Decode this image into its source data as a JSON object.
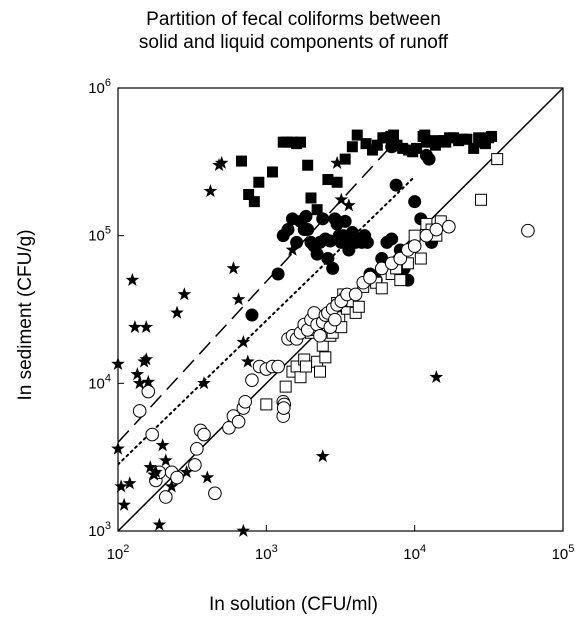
{
  "chart_data": {
    "type": "scatter",
    "title": [
      "Partition of fecal coliforms between",
      "solid and liquid components of runoff"
    ],
    "xlabel": "In solution (CFU/ml)",
    "ylabel": "In sediment (CFU/g)",
    "x_scale": "log",
    "y_scale": "log",
    "xlim": [
      100,
      100000
    ],
    "ylim": [
      1000,
      1000000
    ],
    "x_ticks": [
      100,
      1000,
      10000,
      100000
    ],
    "y_ticks": [
      1000,
      10000,
      100000,
      1000000
    ],
    "tick_labels": {
      "x": [
        {
          "base": "10",
          "exp": "2"
        },
        {
          "base": "10",
          "exp": "3"
        },
        {
          "base": "10",
          "exp": "4"
        },
        {
          "base": "10",
          "exp": "5"
        }
      ],
      "y": [
        {
          "base": "10",
          "exp": "3"
        },
        {
          "base": "10",
          "exp": "4"
        },
        {
          "base": "10",
          "exp": "5"
        },
        {
          "base": "10",
          "exp": "6"
        }
      ]
    },
    "grid": false,
    "legend": false,
    "lines": [
      {
        "style": "solid",
        "points": [
          [
            100,
            1000
          ],
          [
            100000,
            1000000
          ]
        ]
      },
      {
        "style": "dotted",
        "points": [
          [
            100,
            2820
          ],
          [
            10000,
            251000
          ]
        ]
      },
      {
        "style": "dashed",
        "points": [
          [
            100,
            3980
          ],
          [
            7000,
            408000
          ]
        ]
      }
    ],
    "series": [
      {
        "marker": "filled-square",
        "points": [
          [
            680,
            320000
          ],
          [
            760,
            190000
          ],
          [
            830,
            170000
          ],
          [
            890,
            230000
          ],
          [
            1100,
            270000
          ],
          [
            1300,
            430000
          ],
          [
            1380,
            430000
          ],
          [
            1500,
            430000
          ],
          [
            1600,
            420000
          ],
          [
            1700,
            430000
          ],
          [
            1900,
            300000
          ],
          [
            2000,
            180000
          ],
          [
            2200,
            150000
          ],
          [
            2600,
            240000
          ],
          [
            3000,
            230000
          ],
          [
            3400,
            330000
          ],
          [
            3800,
            400000
          ],
          [
            4100,
            480000
          ],
          [
            4700,
            420000
          ],
          [
            5200,
            380000
          ],
          [
            5600,
            410000
          ],
          [
            6100,
            460000
          ],
          [
            6500,
            460000
          ],
          [
            6900,
            470000
          ],
          [
            7200,
            480000
          ],
          [
            7600,
            410000
          ],
          [
            8300,
            390000
          ],
          [
            9100,
            380000
          ],
          [
            9700,
            370000
          ],
          [
            10300,
            390000
          ],
          [
            11400,
            470000
          ],
          [
            11700,
            480000
          ],
          [
            12000,
            430000
          ],
          [
            12500,
            440000
          ],
          [
            13000,
            430000
          ],
          [
            13800,
            410000
          ],
          [
            14700,
            440000
          ],
          [
            15600,
            440000
          ],
          [
            16200,
            430000
          ],
          [
            17200,
            460000
          ],
          [
            18300,
            460000
          ],
          [
            19800,
            440000
          ],
          [
            21000,
            450000
          ],
          [
            22500,
            450000
          ],
          [
            25000,
            390000
          ],
          [
            27000,
            460000
          ],
          [
            29000,
            430000
          ],
          [
            30000,
            420000
          ],
          [
            31500,
            460000
          ],
          [
            33000,
            470000
          ]
        ]
      },
      {
        "marker": "filled-circle",
        "points": [
          [
            800,
            29000
          ],
          [
            1200,
            55000
          ],
          [
            1300,
            100000
          ],
          [
            1400,
            110000
          ],
          [
            1500,
            130000
          ],
          [
            1600,
            90000
          ],
          [
            1700,
            125000
          ],
          [
            1800,
            110000
          ],
          [
            1850,
            135000
          ],
          [
            1900,
            110000
          ],
          [
            2000,
            90000
          ],
          [
            2100,
            85000
          ],
          [
            2200,
            75000
          ],
          [
            2300,
            90000
          ],
          [
            2400,
            130000
          ],
          [
            2500,
            95000
          ],
          [
            2600,
            70000
          ],
          [
            2700,
            92000
          ],
          [
            2800,
            60000
          ],
          [
            2900,
            130000
          ],
          [
            3000,
            120000
          ],
          [
            3100,
            100000
          ],
          [
            3200,
            90000
          ],
          [
            3300,
            100000
          ],
          [
            3400,
            125000
          ],
          [
            3500,
            95000
          ],
          [
            3600,
            80000
          ],
          [
            3800,
            105000
          ],
          [
            4000,
            90000
          ],
          [
            4200,
            95000
          ],
          [
            4400,
            90000
          ],
          [
            4600,
            100000
          ],
          [
            4800,
            90000
          ],
          [
            5000,
            55000
          ],
          [
            5500,
            50000
          ],
          [
            6000,
            70000
          ],
          [
            6500,
            90000
          ],
          [
            7000,
            95000
          ],
          [
            7500,
            220000
          ],
          [
            8000,
            80000
          ],
          [
            8500,
            60000
          ],
          [
            9000,
            50000
          ],
          [
            10000,
            170000
          ],
          [
            11000,
            130000
          ],
          [
            12000,
            350000
          ],
          [
            12500,
            330000
          ],
          [
            13000,
            90000
          ],
          [
            7000,
            400000
          ],
          [
            7400,
            410000
          ]
        ]
      },
      {
        "marker": "open-square",
        "points": [
          [
            1000,
            7200
          ],
          [
            1350,
            9500
          ],
          [
            1500,
            12000
          ],
          [
            1600,
            13000
          ],
          [
            1700,
            11000
          ],
          [
            1800,
            14500
          ],
          [
            1850,
            13000
          ],
          [
            1900,
            24000
          ],
          [
            2000,
            22000
          ],
          [
            2100,
            23000
          ],
          [
            2200,
            14000
          ],
          [
            2300,
            12000
          ],
          [
            2400,
            18000
          ],
          [
            2500,
            15000
          ],
          [
            2600,
            22000
          ],
          [
            2700,
            21000
          ],
          [
            2800,
            22000
          ],
          [
            2900,
            30000
          ],
          [
            3000,
            35000
          ],
          [
            3100,
            28000
          ],
          [
            3200,
            24000
          ],
          [
            3300,
            40000
          ],
          [
            3400,
            37000
          ],
          [
            3500,
            32000
          ],
          [
            3600,
            36000
          ],
          [
            3700,
            38000
          ],
          [
            3800,
            36000
          ],
          [
            4000,
            30000
          ],
          [
            4200,
            33000
          ],
          [
            4500,
            45000
          ],
          [
            5000,
            50000
          ],
          [
            5500,
            48000
          ],
          [
            6000,
            44000
          ],
          [
            6500,
            60000
          ],
          [
            7000,
            55000
          ],
          [
            7500,
            60000
          ],
          [
            8000,
            50000
          ],
          [
            9000,
            65000
          ],
          [
            10000,
            100000
          ],
          [
            11000,
            70000
          ],
          [
            12000,
            120000
          ],
          [
            13000,
            110000
          ],
          [
            14000,
            100000
          ],
          [
            15000,
            125000
          ],
          [
            28000,
            175000
          ],
          [
            36000,
            330000
          ]
        ]
      },
      {
        "marker": "open-circle",
        "points": [
          [
            140,
            6500
          ],
          [
            160,
            8800
          ],
          [
            170,
            4500
          ],
          [
            180,
            2200
          ],
          [
            190,
            2500
          ],
          [
            210,
            1700
          ],
          [
            230,
            2500
          ],
          [
            250,
            2300
          ],
          [
            330,
            2800
          ],
          [
            340,
            3600
          ],
          [
            360,
            4800
          ],
          [
            380,
            4500
          ],
          [
            450,
            1800
          ],
          [
            560,
            5000
          ],
          [
            600,
            6000
          ],
          [
            650,
            5500
          ],
          [
            700,
            6800
          ],
          [
            720,
            7500
          ],
          [
            800,
            10500
          ],
          [
            900,
            13000
          ],
          [
            1000,
            12500
          ],
          [
            1100,
            13000
          ],
          [
            1200,
            13000
          ],
          [
            1300,
            7500
          ],
          [
            1400,
            20000
          ],
          [
            1500,
            21000
          ],
          [
            1600,
            20000
          ],
          [
            1700,
            22000
          ],
          [
            1800,
            25000
          ],
          [
            1900,
            23000
          ],
          [
            2000,
            27000
          ],
          [
            2100,
            30000
          ],
          [
            2200,
            25000
          ],
          [
            2300,
            21000
          ],
          [
            2400,
            26000
          ],
          [
            2500,
            29000
          ],
          [
            2600,
            30000
          ],
          [
            2700,
            24000
          ],
          [
            2800,
            32000
          ],
          [
            2900,
            27000
          ],
          [
            3000,
            34000
          ],
          [
            3200,
            36000
          ],
          [
            3500,
            40000
          ],
          [
            4000,
            40000
          ],
          [
            4500,
            48000
          ],
          [
            5000,
            52000
          ],
          [
            6000,
            60000
          ],
          [
            7000,
            65000
          ],
          [
            8000,
            70000
          ],
          [
            9000,
            80000
          ],
          [
            10000,
            85000
          ],
          [
            12000,
            100000
          ],
          [
            14000,
            110000
          ],
          [
            17000,
            115000
          ],
          [
            58000,
            108000
          ],
          [
            1300,
            6000
          ],
          [
            1320,
            7200
          ],
          [
            1310,
            6800
          ]
        ]
      },
      {
        "marker": "star",
        "points": [
          [
            100,
            13500
          ],
          [
            100,
            3600
          ],
          [
            105,
            2000
          ],
          [
            110,
            1500
          ],
          [
            120,
            2100
          ],
          [
            125,
            50000
          ],
          [
            130,
            24000
          ],
          [
            135,
            11500
          ],
          [
            140,
            10000
          ],
          [
            150,
            14000
          ],
          [
            155,
            14500
          ],
          [
            155,
            24000
          ],
          [
            160,
            10200
          ],
          [
            165,
            2700
          ],
          [
            175,
            2400
          ],
          [
            190,
            1100
          ],
          [
            200,
            3800
          ],
          [
            230,
            2000
          ],
          [
            250,
            30000
          ],
          [
            280,
            40000
          ],
          [
            290,
            2500
          ],
          [
            380,
            10000
          ],
          [
            400,
            2300
          ],
          [
            420,
            200000
          ],
          [
            480,
            300000
          ],
          [
            500,
            310000
          ],
          [
            600,
            60000
          ],
          [
            650,
            37000
          ],
          [
            700,
            1000
          ],
          [
            700,
            19000
          ],
          [
            750,
            14000
          ],
          [
            1500,
            80000
          ],
          [
            3000,
            310000
          ],
          [
            3200,
            175000
          ],
          [
            3600,
            160000
          ],
          [
            2400,
            3200
          ],
          [
            14000,
            11000
          ],
          [
            210,
            3000
          ],
          [
            180,
            2500
          ]
        ]
      }
    ]
  }
}
